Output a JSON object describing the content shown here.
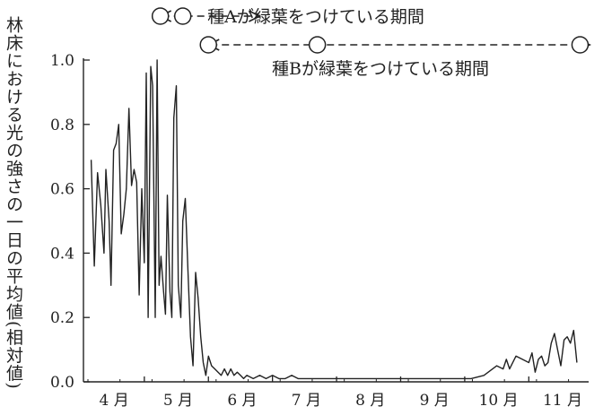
{
  "chart_data": {
    "type": "line",
    "ylabel": "林床における光の強さの一日の平均値(相対値)",
    "yticks": [
      {
        "v": 0.0,
        "label": "0.0"
      },
      {
        "v": 0.2,
        "label": "0.2"
      },
      {
        "v": 0.4,
        "label": "0.4"
      },
      {
        "v": 0.6,
        "label": "0.6"
      },
      {
        "v": 0.8,
        "label": "0.8"
      },
      {
        "v": 1.0,
        "label": "1.0"
      }
    ],
    "ylim": [
      0,
      1.0
    ],
    "xlim": [
      3.55,
      11.35
    ],
    "months": [
      {
        "x": 4,
        "label": "4 月"
      },
      {
        "x": 5,
        "label": "5 月"
      },
      {
        "x": 6,
        "label": "6 月"
      },
      {
        "x": 7,
        "label": "7 月"
      },
      {
        "x": 8,
        "label": "8 月"
      },
      {
        "x": 9,
        "label": "9 月"
      },
      {
        "x": 10,
        "label": "10 月"
      },
      {
        "x": 11,
        "label": "11 月"
      }
    ],
    "grid": false,
    "periods": [
      {
        "name": "種Aが緑葉をつけている期間",
        "start": 4.75,
        "end": 6.3,
        "open_circles": [
          4.75,
          5.1
        ]
      },
      {
        "name": "種Bが緑葉をつけている期間",
        "start": 5.5,
        "end": 11.45,
        "open_circles": [
          5.5,
          7.2,
          11.3
        ]
      }
    ],
    "series": [
      {
        "x": [
          3.67,
          3.72,
          3.77,
          3.82,
          3.87,
          3.9,
          3.95,
          3.98,
          4.02,
          4.06,
          4.1,
          4.14,
          4.18,
          4.22,
          4.26,
          4.3,
          4.34,
          4.38,
          4.42,
          4.46,
          4.5,
          4.53,
          4.56,
          4.6,
          4.63,
          4.67,
          4.7,
          4.73,
          4.76,
          4.8,
          4.83,
          4.86,
          4.9,
          4.93,
          4.96,
          5.0,
          5.03,
          5.07,
          5.1,
          5.14,
          5.18,
          5.22,
          5.26,
          5.3,
          5.34,
          5.38,
          5.42,
          5.46,
          5.5,
          5.55,
          5.6,
          5.65,
          5.7,
          5.75,
          5.8,
          5.85,
          5.9,
          5.95,
          6.0,
          6.05,
          6.1,
          6.2,
          6.3,
          6.4,
          6.5,
          6.6,
          6.7,
          6.8,
          6.9,
          7.0,
          7.2,
          7.4,
          7.6,
          7.8,
          8.0,
          8.2,
          8.4,
          8.6,
          8.8,
          9.0,
          9.2,
          9.4,
          9.6,
          9.8,
          10.0,
          10.1,
          10.15,
          10.2,
          10.3,
          10.4,
          10.5,
          10.55,
          10.6,
          10.65,
          10.7,
          10.75,
          10.8,
          10.85,
          10.9,
          10.95,
          11.0,
          11.05,
          11.1,
          11.15,
          11.2,
          11.25
        ],
        "y": [
          0.69,
          0.36,
          0.65,
          0.55,
          0.4,
          0.66,
          0.5,
          0.3,
          0.72,
          0.74,
          0.8,
          0.46,
          0.52,
          0.6,
          0.85,
          0.61,
          0.66,
          0.62,
          0.27,
          0.6,
          0.37,
          0.96,
          0.2,
          0.98,
          0.92,
          0.2,
          1.0,
          0.3,
          0.39,
          0.28,
          0.21,
          0.58,
          0.28,
          0.2,
          0.82,
          0.92,
          0.3,
          0.2,
          0.5,
          0.57,
          0.35,
          0.14,
          0.05,
          0.34,
          0.26,
          0.14,
          0.06,
          0.02,
          0.08,
          0.05,
          0.04,
          0.03,
          0.02,
          0.04,
          0.02,
          0.04,
          0.02,
          0.03,
          0.02,
          0.01,
          0.02,
          0.01,
          0.02,
          0.01,
          0.02,
          0.01,
          0.01,
          0.02,
          0.01,
          0.01,
          0.01,
          0.01,
          0.01,
          0.01,
          0.01,
          0.01,
          0.01,
          0.01,
          0.01,
          0.01,
          0.01,
          0.01,
          0.01,
          0.02,
          0.05,
          0.04,
          0.07,
          0.04,
          0.08,
          0.07,
          0.06,
          0.09,
          0.03,
          0.07,
          0.08,
          0.05,
          0.06,
          0.12,
          0.15,
          0.1,
          0.05,
          0.13,
          0.14,
          0.12,
          0.16,
          0.06
        ]
      }
    ]
  }
}
